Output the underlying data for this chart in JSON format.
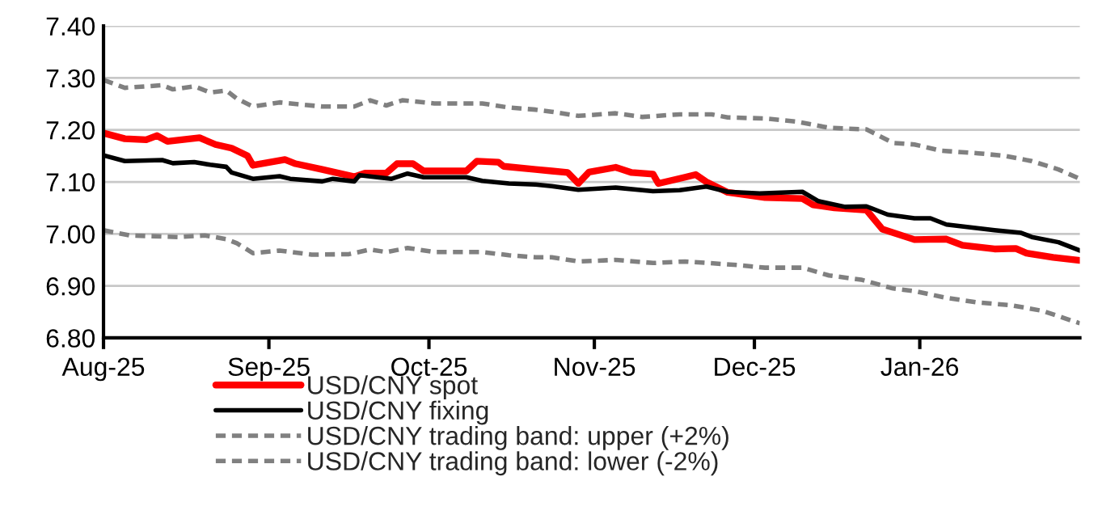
{
  "chart_data": {
    "type": "line",
    "ylim": [
      6.8,
      7.4
    ],
    "yticks": [
      {
        "value": 6.8,
        "label": "6.80"
      },
      {
        "value": 6.9,
        "label": "6.90"
      },
      {
        "value": 7.0,
        "label": "7.00"
      },
      {
        "value": 7.1,
        "label": "7.10"
      },
      {
        "value": 7.2,
        "label": "7.20"
      },
      {
        "value": 7.3,
        "label": "7.30"
      },
      {
        "value": 7.4,
        "label": "7.40"
      }
    ],
    "xlim": [
      "2025-08-01",
      "2026-01-31"
    ],
    "xticks": [
      {
        "value": "2025-08-01",
        "label": "Aug-25"
      },
      {
        "value": "2025-09-01",
        "label": "Sep-25"
      },
      {
        "value": "2025-10-01",
        "label": "Oct-25"
      },
      {
        "value": "2025-11-01",
        "label": "Nov-25"
      },
      {
        "value": "2025-12-01",
        "label": "Dec-25"
      },
      {
        "value": "2026-01-01",
        "label": "Jan-26"
      }
    ],
    "grid": "y",
    "legend": "bottom",
    "series": [
      {
        "name": "USD/CNY spot",
        "color": "#ff0000",
        "line_style": "solid",
        "x": [
          "2025-08-01",
          "2025-08-05",
          "2025-08-09",
          "2025-08-11",
          "2025-08-13",
          "2025-08-19",
          "2025-08-22",
          "2025-08-25",
          "2025-08-28",
          "2025-08-29",
          "2025-09-04",
          "2025-09-06",
          "2025-09-11",
          "2025-09-17",
          "2025-09-19",
          "2025-09-23",
          "2025-09-25",
          "2025-09-28",
          "2025-09-30",
          "2025-10-08",
          "2025-10-10",
          "2025-10-14",
          "2025-10-15",
          "2025-10-21",
          "2025-10-24",
          "2025-10-27",
          "2025-10-29",
          "2025-10-31",
          "2025-11-05",
          "2025-11-08",
          "2025-11-12",
          "2025-11-13",
          "2025-11-18",
          "2025-11-20",
          "2025-11-22",
          "2025-11-26",
          "2025-12-03",
          "2025-12-10",
          "2025-12-12",
          "2025-12-16",
          "2025-12-22",
          "2025-12-25",
          "2025-12-31",
          "2026-01-06",
          "2026-01-09",
          "2026-01-15",
          "2026-01-19",
          "2026-01-21",
          "2026-01-26",
          "2026-01-31"
        ],
        "values": [
          7.194,
          7.183,
          7.181,
          7.189,
          7.178,
          7.185,
          7.172,
          7.165,
          7.15,
          7.132,
          7.143,
          7.135,
          7.124,
          7.11,
          7.117,
          7.117,
          7.135,
          7.135,
          7.121,
          7.121,
          7.14,
          7.138,
          7.13,
          7.124,
          7.121,
          7.118,
          7.097,
          7.119,
          7.128,
          7.118,
          7.115,
          7.097,
          7.109,
          7.114,
          7.1,
          7.08,
          7.07,
          7.068,
          7.056,
          7.05,
          7.046,
          7.009,
          6.989,
          6.99,
          6.978,
          6.971,
          6.972,
          6.963,
          6.955,
          6.949
        ]
      },
      {
        "name": "USD/CNY fixing",
        "color": "#000000",
        "line_style": "solid",
        "x": [
          "2025-08-01",
          "2025-08-05",
          "2025-08-12",
          "2025-08-14",
          "2025-08-18",
          "2025-08-21",
          "2025-08-24",
          "2025-08-25",
          "2025-08-29",
          "2025-09-03",
          "2025-09-05",
          "2025-09-11",
          "2025-09-13",
          "2025-09-17",
          "2025-09-18",
          "2025-09-24",
          "2025-09-27",
          "2025-09-30",
          "2025-10-08",
          "2025-10-11",
          "2025-10-16",
          "2025-10-21",
          "2025-10-24",
          "2025-10-29",
          "2025-11-05",
          "2025-11-12",
          "2025-11-17",
          "2025-11-22",
          "2025-11-26",
          "2025-12-02",
          "2025-12-10",
          "2025-12-13",
          "2025-12-18",
          "2025-12-22",
          "2025-12-26",
          "2025-12-31",
          "2026-01-03",
          "2026-01-06",
          "2026-01-15",
          "2026-01-20",
          "2026-01-22",
          "2026-01-27",
          "2026-01-31"
        ],
        "values": [
          7.151,
          7.14,
          7.142,
          7.136,
          7.138,
          7.133,
          7.129,
          7.118,
          7.106,
          7.111,
          7.106,
          7.101,
          7.106,
          7.101,
          7.113,
          7.106,
          7.116,
          7.109,
          7.109,
          7.102,
          7.097,
          7.095,
          7.092,
          7.085,
          7.089,
          7.082,
          7.084,
          7.091,
          7.081,
          7.078,
          7.081,
          7.063,
          7.052,
          7.053,
          7.037,
          7.03,
          7.03,
          7.018,
          7.007,
          7.002,
          6.994,
          6.984,
          6.968
        ]
      },
      {
        "name": "USD/CNY trading band: upper (+2%)",
        "color": "#808080",
        "line_style": "dashed",
        "x": [
          "2025-08-01",
          "2025-08-05",
          "2025-08-12",
          "2025-08-14",
          "2025-08-18",
          "2025-08-21",
          "2025-08-24",
          "2025-08-26",
          "2025-08-29",
          "2025-09-03",
          "2025-09-11",
          "2025-09-17",
          "2025-09-20",
          "2025-09-23",
          "2025-09-26",
          "2025-10-02",
          "2025-10-11",
          "2025-10-16",
          "2025-10-21",
          "2025-10-24",
          "2025-10-29",
          "2025-11-05",
          "2025-11-10",
          "2025-11-17",
          "2025-11-23",
          "2025-11-26",
          "2025-12-03",
          "2025-12-09",
          "2025-12-15",
          "2025-12-22",
          "2025-12-27",
          "2025-12-31",
          "2026-01-05",
          "2026-01-12",
          "2026-01-17",
          "2026-01-22",
          "2026-01-27",
          "2026-01-31"
        ],
        "values": [
          7.296,
          7.281,
          7.286,
          7.278,
          7.284,
          7.272,
          7.276,
          7.26,
          7.245,
          7.253,
          7.245,
          7.245,
          7.257,
          7.247,
          7.257,
          7.251,
          7.251,
          7.243,
          7.239,
          7.235,
          7.227,
          7.232,
          7.225,
          7.23,
          7.23,
          7.224,
          7.222,
          7.216,
          7.204,
          7.201,
          7.175,
          7.172,
          7.16,
          7.155,
          7.15,
          7.14,
          7.124,
          7.106
        ]
      },
      {
        "name": "USD/CNY trading band: lower (-2%)",
        "color": "#808080",
        "line_style": "dashed",
        "x": [
          "2025-08-01",
          "2025-08-06",
          "2025-08-15",
          "2025-08-20",
          "2025-08-24",
          "2025-08-26",
          "2025-08-29",
          "2025-09-03",
          "2025-09-09",
          "2025-09-16",
          "2025-09-20",
          "2025-09-23",
          "2025-09-27",
          "2025-10-02",
          "2025-10-11",
          "2025-10-16",
          "2025-10-21",
          "2025-10-24",
          "2025-10-29",
          "2025-11-05",
          "2025-11-12",
          "2025-11-18",
          "2025-11-28",
          "2025-12-03",
          "2025-12-10",
          "2025-12-15",
          "2025-12-21",
          "2025-12-27",
          "2025-12-31",
          "2026-01-06",
          "2026-01-12",
          "2026-01-18",
          "2026-01-24",
          "2026-01-31"
        ],
        "values": [
          7.007,
          6.997,
          6.994,
          6.997,
          6.99,
          6.982,
          6.963,
          6.968,
          6.96,
          6.961,
          6.97,
          6.965,
          6.973,
          6.965,
          6.965,
          6.959,
          6.955,
          6.955,
          6.947,
          6.95,
          6.944,
          6.947,
          6.94,
          6.935,
          6.935,
          6.92,
          6.912,
          6.895,
          6.89,
          6.877,
          6.868,
          6.863,
          6.852,
          6.828
        ]
      }
    ]
  }
}
